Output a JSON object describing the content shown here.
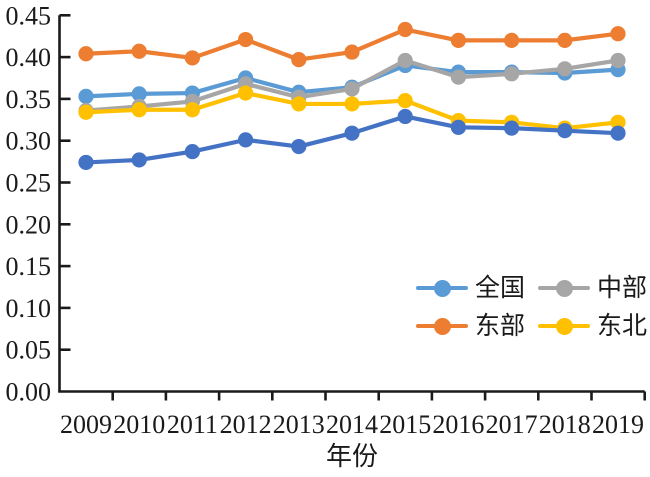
{
  "chart_data": {
    "type": "line",
    "title": "",
    "xlabel": "年份",
    "ylabel": "",
    "x_categories": [
      "2009",
      "2010",
      "2011",
      "2012",
      "2013",
      "2014",
      "2015",
      "2016",
      "2017",
      "2018",
      "2019"
    ],
    "y_ticks": [
      "0.00",
      "0.05",
      "0.10",
      "0.15",
      "0.20",
      "0.25",
      "0.30",
      "0.35",
      "0.40",
      "0.45"
    ],
    "ylim": [
      0,
      0.45
    ],
    "y_step": 0.05,
    "grid": false,
    "legend_position": "inside-lower-right",
    "series": [
      {
        "name": "全国",
        "color": "#5B9BD5",
        "in_legend": true,
        "values": [
          0.353,
          0.356,
          0.357,
          0.375,
          0.358,
          0.364,
          0.39,
          0.382,
          0.382,
          0.381,
          0.385
        ]
      },
      {
        "name": "中部",
        "color": "#A6A6A6",
        "in_legend": true,
        "values": [
          0.336,
          0.341,
          0.347,
          0.368,
          0.352,
          0.362,
          0.396,
          0.376,
          0.38,
          0.386,
          0.396
        ]
      },
      {
        "name": "东部",
        "color": "#ED7D31",
        "in_legend": true,
        "values": [
          0.404,
          0.407,
          0.399,
          0.421,
          0.397,
          0.406,
          0.433,
          0.42,
          0.42,
          0.42,
          0.428
        ]
      },
      {
        "name": "东北",
        "color": "#FFC000",
        "in_legend": true,
        "values": [
          0.334,
          0.337,
          0.337,
          0.357,
          0.344,
          0.344,
          0.348,
          0.324,
          0.322,
          0.315,
          0.322
        ]
      },
      {
        "name": "",
        "color": "#4472C4",
        "in_legend": false,
        "values": [
          0.274,
          0.277,
          0.287,
          0.301,
          0.293,
          0.309,
          0.329,
          0.316,
          0.315,
          0.312,
          0.309
        ]
      }
    ],
    "legend": [
      {
        "label": "全国",
        "color": "#5B9BD5"
      },
      {
        "label": "中部",
        "color": "#A6A6A6"
      },
      {
        "label": "东部",
        "color": "#ED7D31"
      },
      {
        "label": "东北",
        "color": "#FFC000"
      }
    ]
  },
  "style": {
    "background": "#ffffff",
    "axis_color": "#1a1a1a",
    "text_color": "#1a1a1a"
  }
}
